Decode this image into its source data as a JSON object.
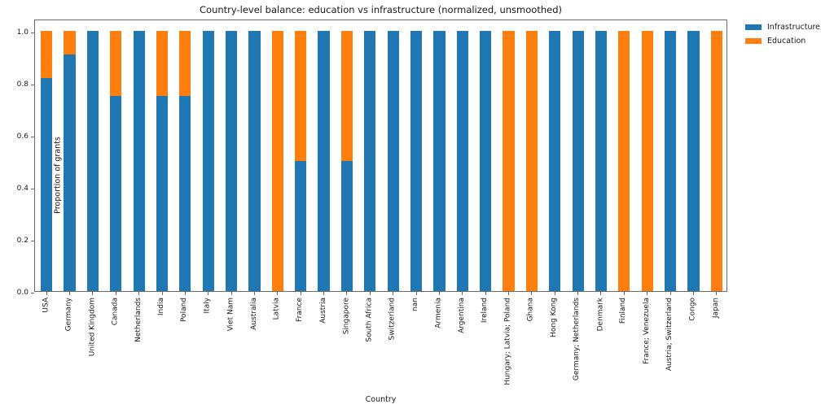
{
  "chart_data": {
    "type": "bar",
    "stacked": true,
    "title": "Country-level balance: education vs infrastructure (normalized, unsmoothed)",
    "xlabel": "Country",
    "ylabel": "Proportion of grants",
    "ylim": [
      0,
      1.05
    ],
    "yticks": [
      "0.0",
      "0.2",
      "0.4",
      "0.6",
      "0.8",
      "1.0"
    ],
    "ytick_values": [
      0.0,
      0.2,
      0.4,
      0.6,
      0.8,
      1.0
    ],
    "grid": false,
    "legend_position": "upper right, outside plot",
    "categories": [
      "USA",
      "Germany",
      "United Kingdom",
      "Canada",
      "Netherlands",
      "India",
      "Poland",
      "Italy",
      "Viet Nam",
      "Australia",
      "Latvia",
      "France",
      "Austria",
      "Singapore",
      "South Africa",
      "Switzerland",
      "nan",
      "Armenia",
      "Argentina",
      "Ireland",
      "Hungary; Latvia; Poland",
      "Ghana",
      "Hong Kong",
      "Germany; Netherlands",
      "Denmark",
      "Finland",
      "France; Venezuela",
      "Austria; Switzerland",
      "Congo",
      "Japan"
    ],
    "series": [
      {
        "name": "Infrastructure",
        "color": "#1f77b4",
        "values": [
          0.82,
          0.91,
          1.0,
          0.75,
          1.0,
          0.75,
          0.75,
          1.0,
          1.0,
          1.0,
          0.0,
          0.5,
          1.0,
          0.5,
          1.0,
          1.0,
          1.0,
          1.0,
          1.0,
          1.0,
          0.0,
          0.0,
          1.0,
          1.0,
          1.0,
          0.0,
          0.0,
          1.0,
          1.0,
          0.0
        ]
      },
      {
        "name": "Education",
        "color": "#ff7f0e",
        "values": [
          0.18,
          0.09,
          0.0,
          0.25,
          0.0,
          0.25,
          0.25,
          0.0,
          0.0,
          0.0,
          1.0,
          0.5,
          0.0,
          0.5,
          0.0,
          0.0,
          0.0,
          0.0,
          0.0,
          0.0,
          1.0,
          1.0,
          0.0,
          0.0,
          0.0,
          1.0,
          1.0,
          0.0,
          0.0,
          1.0
        ]
      }
    ]
  }
}
